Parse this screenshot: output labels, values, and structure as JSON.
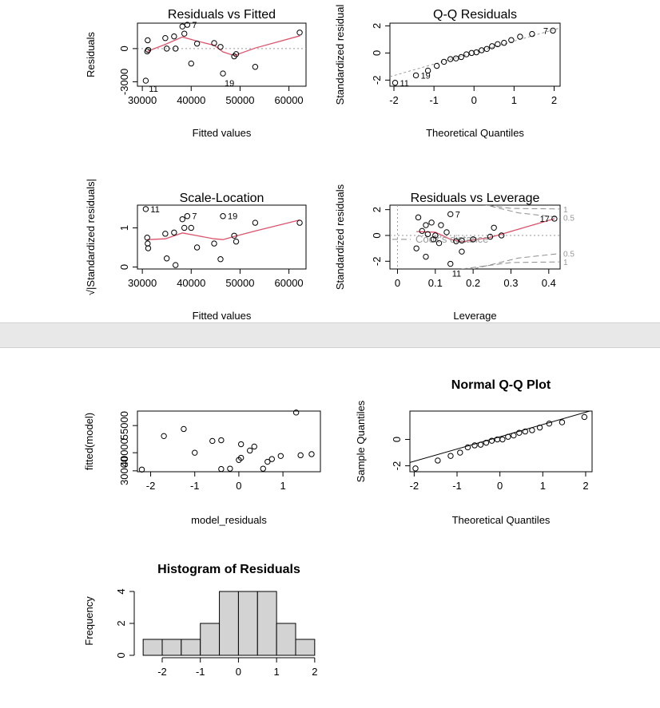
{
  "chart_data": [
    {
      "id": "rvf",
      "type": "scatter",
      "title": "Residuals vs Fitted",
      "xlabel": "Fitted values",
      "ylabel": "Residuals",
      "xlim": [
        29000,
        63500
      ],
      "ylim": [
        -3400,
        2300
      ],
      "xticks": [
        30000,
        40000,
        50000,
        60000
      ],
      "yticks": [
        -3000,
        0
      ],
      "reference_line": 0,
      "points": [
        {
          "x": 30700,
          "y": -2900
        },
        {
          "x": 31000,
          "y": -250
        },
        {
          "x": 31200,
          "y": -120
        },
        {
          "x": 31100,
          "y": 750
        },
        {
          "x": 34700,
          "y": 950
        },
        {
          "x": 35000,
          "y": 0
        },
        {
          "x": 36500,
          "y": 1100
        },
        {
          "x": 36800,
          "y": 0
        },
        {
          "x": 38200,
          "y": 2000
        },
        {
          "x": 38600,
          "y": 1350
        },
        {
          "x": 39200,
          "y": 2150
        },
        {
          "x": 40000,
          "y": -1350
        },
        {
          "x": 41200,
          "y": 450
        },
        {
          "x": 44700,
          "y": 500
        },
        {
          "x": 46000,
          "y": 150
        },
        {
          "x": 46500,
          "y": -2250
        },
        {
          "x": 48800,
          "y": -700
        },
        {
          "x": 49200,
          "y": -500
        },
        {
          "x": 53100,
          "y": -1650
        },
        {
          "x": 62200,
          "y": 1450
        }
      ],
      "smooth": [
        [
          31000,
          -250
        ],
        [
          34700,
          380
        ],
        [
          38200,
          1050
        ],
        [
          41200,
          680
        ],
        [
          44700,
          300
        ],
        [
          46500,
          -300
        ],
        [
          48800,
          -630
        ],
        [
          53100,
          50
        ],
        [
          62200,
          1150
        ]
      ],
      "labels": [
        {
          "text": "7",
          "x": 39200,
          "y": 2150
        },
        {
          "text": "11",
          "x": 30700,
          "y": -2900
        },
        {
          "text": "19",
          "x": 46500,
          "y": -2250
        }
      ]
    },
    {
      "id": "qq",
      "type": "scatter",
      "title": "Q-Q Residuals",
      "xlabel": "Theoretical Quantiles",
      "ylabel": "Standardized residual",
      "xlim": [
        -2.1,
        2.15
      ],
      "ylim": [
        -2.45,
        2.2
      ],
      "xticks": [
        -2,
        -1,
        0,
        1,
        2
      ],
      "yticks": [
        -2,
        0,
        2
      ],
      "line": [
        [
          -2.1,
          -1.75
        ],
        [
          2.15,
          1.85
        ]
      ],
      "points": [
        {
          "x": -1.97,
          "y": -2.2
        },
        {
          "x": -1.45,
          "y": -1.65
        },
        {
          "x": -1.15,
          "y": -1.3
        },
        {
          "x": -0.93,
          "y": -0.95
        },
        {
          "x": -0.75,
          "y": -0.65
        },
        {
          "x": -0.59,
          "y": -0.45
        },
        {
          "x": -0.45,
          "y": -0.4
        },
        {
          "x": -0.32,
          "y": -0.3
        },
        {
          "x": -0.19,
          "y": -0.1
        },
        {
          "x": -0.06,
          "y": 0.0
        },
        {
          "x": 0.06,
          "y": 0.05
        },
        {
          "x": 0.19,
          "y": 0.2
        },
        {
          "x": 0.32,
          "y": 0.3
        },
        {
          "x": 0.45,
          "y": 0.5
        },
        {
          "x": 0.59,
          "y": 0.65
        },
        {
          "x": 0.75,
          "y": 0.75
        },
        {
          "x": 0.93,
          "y": 0.95
        },
        {
          "x": 1.15,
          "y": 1.2
        },
        {
          "x": 1.45,
          "y": 1.4
        },
        {
          "x": 1.97,
          "y": 1.65
        }
      ],
      "labels": [
        {
          "text": "7",
          "x": 1.97,
          "y": 1.65
        },
        {
          "text": "11",
          "x": -1.97,
          "y": -2.2
        },
        {
          "text": "19",
          "x": -1.45,
          "y": -1.65
        }
      ]
    },
    {
      "id": "sl",
      "type": "scatter",
      "title": "Scale-Location",
      "xlabel": "Fitted values",
      "ylabel": "√|Standardized residuals|",
      "xlim": [
        29000,
        63500
      ],
      "ylim": [
        -0.05,
        1.58
      ],
      "xticks": [
        30000,
        40000,
        50000,
        60000
      ],
      "yticks": [
        0.0,
        1.0
      ],
      "points": [
        {
          "x": 30700,
          "y": 1.48
        },
        {
          "x": 31000,
          "y": 0.75
        },
        {
          "x": 31100,
          "y": 0.6
        },
        {
          "x": 31200,
          "y": 0.48
        },
        {
          "x": 34700,
          "y": 0.85
        },
        {
          "x": 35000,
          "y": 0.22
        },
        {
          "x": 36500,
          "y": 0.88
        },
        {
          "x": 36800,
          "y": 0.05
        },
        {
          "x": 38200,
          "y": 1.22
        },
        {
          "x": 38600,
          "y": 1.0
        },
        {
          "x": 39200,
          "y": 1.3
        },
        {
          "x": 40000,
          "y": 1.0
        },
        {
          "x": 41200,
          "y": 0.5
        },
        {
          "x": 44700,
          "y": 0.6
        },
        {
          "x": 46000,
          "y": 0.2
        },
        {
          "x": 46500,
          "y": 1.3
        },
        {
          "x": 48800,
          "y": 0.8
        },
        {
          "x": 49200,
          "y": 0.65
        },
        {
          "x": 53100,
          "y": 1.13
        },
        {
          "x": 62200,
          "y": 1.13
        }
      ],
      "smooth": [
        [
          31000,
          0.7
        ],
        [
          34700,
          0.72
        ],
        [
          38200,
          0.87
        ],
        [
          41200,
          0.8
        ],
        [
          44700,
          0.72
        ],
        [
          46500,
          0.7
        ],
        [
          48800,
          0.78
        ],
        [
          53100,
          0.92
        ],
        [
          62200,
          1.2
        ]
      ],
      "labels": [
        {
          "text": "11",
          "x": 30700,
          "y": 1.48
        },
        {
          "text": "7",
          "x": 39200,
          "y": 1.3
        },
        {
          "text": "19",
          "x": 46500,
          "y": 1.3
        }
      ]
    },
    {
      "id": "rvl",
      "type": "scatter",
      "title": "Residuals vs Leverage",
      "xlabel": "Leverage",
      "ylabel": "Standardized residuals",
      "xlim": [
        -0.02,
        0.43
      ],
      "ylim": [
        -2.6,
        2.35
      ],
      "xticks": [
        0.0,
        0.1,
        0.2,
        0.3,
        0.4
      ],
      "yticks": [
        -2,
        0,
        2
      ],
      "legend_text": "Cook's distance",
      "contour_labels": [
        "1",
        "0.5",
        "0.5",
        "1"
      ],
      "points": [
        {
          "x": 0.05,
          "y": -1.0
        },
        {
          "x": 0.055,
          "y": 1.4
        },
        {
          "x": 0.065,
          "y": 0.35
        },
        {
          "x": 0.075,
          "y": -1.65
        },
        {
          "x": 0.075,
          "y": 0.8
        },
        {
          "x": 0.08,
          "y": 0.1
        },
        {
          "x": 0.09,
          "y": 1.0
        },
        {
          "x": 0.095,
          "y": -0.3
        },
        {
          "x": 0.1,
          "y": 0.0
        },
        {
          "x": 0.11,
          "y": -0.6
        },
        {
          "x": 0.115,
          "y": 0.8
        },
        {
          "x": 0.13,
          "y": 0.25
        },
        {
          "x": 0.14,
          "y": 1.65
        },
        {
          "x": 0.14,
          "y": -2.2
        },
        {
          "x": 0.155,
          "y": -0.45
        },
        {
          "x": 0.17,
          "y": -1.25
        },
        {
          "x": 0.17,
          "y": -0.4
        },
        {
          "x": 0.2,
          "y": -0.3
        },
        {
          "x": 0.245,
          "y": -0.1
        },
        {
          "x": 0.255,
          "y": 0.6
        },
        {
          "x": 0.275,
          "y": 0.0
        },
        {
          "x": 0.415,
          "y": 1.3
        }
      ],
      "smooth": [
        [
          0.05,
          0.3
        ],
        [
          0.1,
          0.25
        ],
        [
          0.14,
          -0.3
        ],
        [
          0.17,
          -0.5
        ],
        [
          0.2,
          -0.35
        ],
        [
          0.245,
          -0.15
        ],
        [
          0.275,
          0.1
        ],
        [
          0.415,
          1.3
        ]
      ],
      "labels": [
        {
          "text": "7",
          "x": 0.14,
          "y": 1.65
        },
        {
          "text": "11",
          "x": 0.14,
          "y": -2.2
        },
        {
          "text": "17",
          "x": 0.415,
          "y": 1.3
        }
      ]
    },
    {
      "id": "scatter",
      "type": "scatter",
      "title": "",
      "xlabel": "model_residuals",
      "ylabel": "fitted(model)",
      "xlim": [
        -2.3,
        1.85
      ],
      "ylim": [
        29500,
        63000
      ],
      "xticks": [
        -2,
        -1,
        0,
        1
      ],
      "yticks": [
        30000,
        40000,
        55000
      ],
      "points": [
        {
          "x": -2.2,
          "y": 30700
        },
        {
          "x": -1.7,
          "y": 49200
        },
        {
          "x": -1.25,
          "y": 53100
        },
        {
          "x": -1.0,
          "y": 40000
        },
        {
          "x": -0.6,
          "y": 46500
        },
        {
          "x": -0.4,
          "y": 46900
        },
        {
          "x": -0.4,
          "y": 31000
        },
        {
          "x": -0.2,
          "y": 31200
        },
        {
          "x": 0.0,
          "y": 36000
        },
        {
          "x": 0.05,
          "y": 37200
        },
        {
          "x": 0.05,
          "y": 44700
        },
        {
          "x": 0.25,
          "y": 41200
        },
        {
          "x": 0.35,
          "y": 43400
        },
        {
          "x": 0.55,
          "y": 31200
        },
        {
          "x": 0.65,
          "y": 35000
        },
        {
          "x": 0.75,
          "y": 36500
        },
        {
          "x": 0.95,
          "y": 38200
        },
        {
          "x": 1.3,
          "y": 62200
        },
        {
          "x": 1.4,
          "y": 38600
        },
        {
          "x": 1.65,
          "y": 39200
        }
      ]
    },
    {
      "id": "nqq",
      "type": "scatter",
      "title": "Normal Q-Q Plot",
      "xlabel": "Theoretical Quantiles",
      "ylabel": "Sample Quantiles",
      "xlim": [
        -2.1,
        2.15
      ],
      "ylim": [
        -2.45,
        2.15
      ],
      "xticks": [
        -2,
        -1,
        0,
        1,
        2
      ],
      "yticks": [
        -2,
        0
      ],
      "line": [
        [
          -2.1,
          -1.75
        ],
        [
          2.15,
          2.2
        ]
      ],
      "points": [
        {
          "x": -1.97,
          "y": -2.2
        },
        {
          "x": -1.45,
          "y": -1.6
        },
        {
          "x": -1.15,
          "y": -1.25
        },
        {
          "x": -0.93,
          "y": -1.0
        },
        {
          "x": -0.75,
          "y": -0.6
        },
        {
          "x": -0.59,
          "y": -0.45
        },
        {
          "x": -0.45,
          "y": -0.4
        },
        {
          "x": -0.32,
          "y": -0.25
        },
        {
          "x": -0.19,
          "y": -0.1
        },
        {
          "x": -0.06,
          "y": 0.0
        },
        {
          "x": 0.06,
          "y": 0.0
        },
        {
          "x": 0.19,
          "y": 0.2
        },
        {
          "x": 0.32,
          "y": 0.3
        },
        {
          "x": 0.45,
          "y": 0.5
        },
        {
          "x": 0.59,
          "y": 0.6
        },
        {
          "x": 0.75,
          "y": 0.7
        },
        {
          "x": 0.93,
          "y": 0.9
        },
        {
          "x": 1.15,
          "y": 1.2
        },
        {
          "x": 1.45,
          "y": 1.3
        },
        {
          "x": 1.97,
          "y": 1.7
        }
      ]
    },
    {
      "id": "hist",
      "type": "bar",
      "title": "Histogram of Residuals",
      "xlabel": "",
      "ylabel": "Frequency",
      "xlim": [
        -2.65,
        2.15
      ],
      "ylim": [
        0,
        4.3
      ],
      "xticks": [
        -2,
        -1,
        0,
        1,
        2
      ],
      "yticks": [
        0,
        2,
        4
      ],
      "bins": [
        {
          "x0": -2.5,
          "x1": -2.0,
          "count": 1
        },
        {
          "x0": -2.0,
          "x1": -1.5,
          "count": 1
        },
        {
          "x0": -1.5,
          "x1": -1.0,
          "count": 1
        },
        {
          "x0": -1.0,
          "x1": -0.5,
          "count": 2
        },
        {
          "x0": -0.5,
          "x1": 0.0,
          "count": 4
        },
        {
          "x0": 0.0,
          "x1": 0.5,
          "count": 4
        },
        {
          "x0": 0.5,
          "x1": 1.0,
          "count": 4
        },
        {
          "x0": 1.0,
          "x1": 1.5,
          "count": 2
        },
        {
          "x0": 1.5,
          "x1": 2.0,
          "count": 1
        }
      ]
    }
  ],
  "colors": {
    "smooth": "#df536b",
    "bar_fill": "#d3d3d3",
    "axis": "#000000",
    "dashed": "#9a9a9a",
    "cook": "#8c8c8c",
    "separator": "#e8e8e8"
  }
}
